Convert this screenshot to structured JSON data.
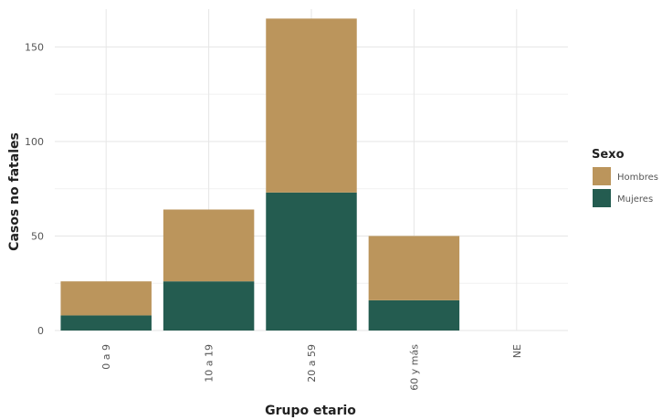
{
  "chart_data": {
    "type": "bar",
    "stacked": true,
    "categories": [
      "0 a 9",
      "10 a 19",
      "20 a 59",
      "60 y más",
      "NE"
    ],
    "series": [
      {
        "name": "Mujeres",
        "values": [
          8,
          26,
          73,
          16,
          0
        ],
        "color": "#245c50"
      },
      {
        "name": "Hombres",
        "values": [
          18,
          38,
          92,
          34,
          0
        ],
        "color": "#bb955c"
      }
    ],
    "xlabel": "Grupo etario",
    "ylabel": "Casos no fatales",
    "ylim": [
      0,
      170
    ],
    "yticks": [
      0,
      50,
      100,
      150
    ],
    "grid": true,
    "legend": {
      "title": "Sexo",
      "position": "right",
      "items": [
        "Hombres",
        "Mujeres"
      ]
    }
  }
}
